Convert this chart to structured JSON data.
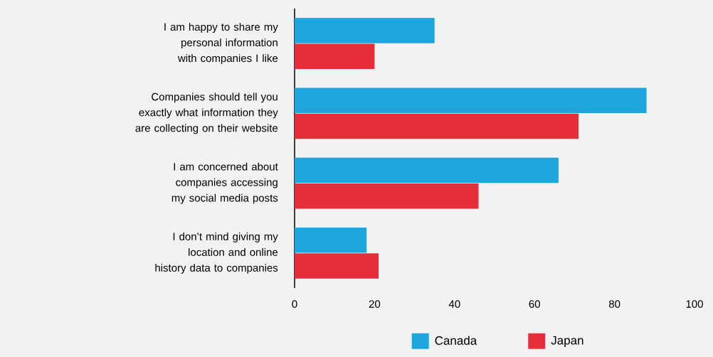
{
  "chart_data": {
    "type": "bar",
    "orientation": "horizontal",
    "categories": [
      "I am happy to share my personal information with companies I like",
      "Companies should tell you exactly what information they are collecting on their website",
      "I am concerned about companies accessing my social media posts",
      "I don’t mind giving my location and online history data to companies"
    ],
    "series": [
      {
        "name": "Canada",
        "color": "#1ca5de",
        "values": [
          35,
          88,
          66,
          18
        ]
      },
      {
        "name": "Japan",
        "color": "#e62d3a",
        "values": [
          20,
          71,
          46,
          21
        ]
      }
    ],
    "xlim": [
      0,
      100
    ],
    "xticks": [
      0,
      20,
      40,
      60,
      80,
      100
    ],
    "legend": "bottom"
  }
}
